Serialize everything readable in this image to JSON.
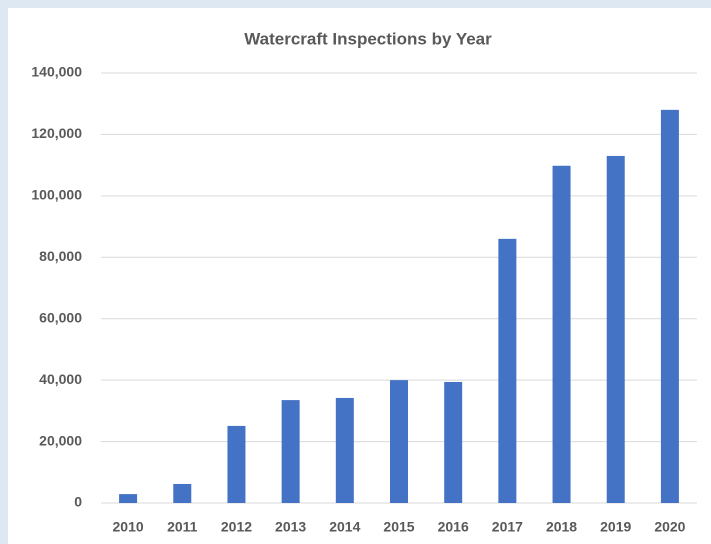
{
  "chart_data": {
    "type": "bar",
    "title": "Watercraft Inspections by Year",
    "categories": [
      "2010",
      "2011",
      "2012",
      "2013",
      "2014",
      "2015",
      "2016",
      "2017",
      "2018",
      "2019",
      "2020"
    ],
    "values": [
      2900,
      6200,
      25100,
      33500,
      34200,
      40000,
      39400,
      86000,
      109800,
      113000,
      128000
    ],
    "color": "#4472c4",
    "ylim": [
      0,
      140000
    ],
    "yticks": [
      0,
      {
        "value": 20000,
        "label": "20,000"
      },
      {
        "value": 40000,
        "label": "40,000"
      },
      {
        "value": 60000,
        "label": "60,000"
      },
      {
        "value": 80000,
        "label": "80,000"
      },
      {
        "value": 100000,
        "label": "100,000"
      },
      {
        "value": 120000,
        "label": "120,000"
      },
      {
        "value": 140000,
        "label": "140,000"
      }
    ],
    "grid": true
  }
}
